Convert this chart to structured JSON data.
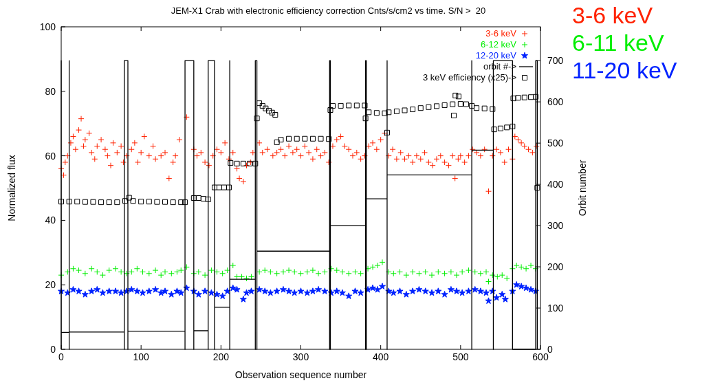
{
  "chart_data": {
    "type": "scatter",
    "title": "JEM-X1 Crab with electronic efficiency correction Cnts/s/cm2 vs time. S/N >  20",
    "xlabel": "Observation sequence number",
    "ylabel": "Normalized flux",
    "y2label": "Orbit number",
    "xlim": [
      0,
      600
    ],
    "xticks": [
      0,
      100,
      200,
      300,
      400,
      500,
      600
    ],
    "ylim": [
      0,
      100
    ],
    "yticks": [
      0,
      20,
      40,
      60,
      80,
      100
    ],
    "y2lim": [
      0,
      782
    ],
    "y2ticks": [
      0,
      100,
      200,
      300,
      400,
      500,
      600,
      700
    ],
    "legend": "top right",
    "annotations": [
      "3-6 keV",
      "6-11 keV",
      "11-20 keV"
    ],
    "series": [
      {
        "name": "3-6 keV",
        "marker": "cross",
        "color": "#ff2200",
        "x": [
          0,
          3,
          5,
          8,
          12,
          15,
          18,
          22,
          25,
          28,
          30,
          35,
          38,
          42,
          45,
          50,
          55,
          58,
          62,
          65,
          70,
          75,
          78,
          82,
          88,
          92,
          96,
          100,
          104,
          110,
          115,
          118,
          125,
          130,
          135,
          140,
          143,
          148,
          157,
          166,
          170,
          175,
          180,
          185,
          190,
          195,
          200,
          205,
          210,
          215,
          220,
          223,
          228,
          232,
          237,
          240,
          248,
          252,
          258,
          265,
          270,
          275,
          280,
          285,
          290,
          295,
          300,
          305,
          310,
          315,
          320,
          325,
          330,
          335,
          340,
          345,
          350,
          355,
          360,
          365,
          370,
          375,
          380,
          385,
          390,
          395,
          400,
          405,
          410,
          415,
          420,
          425,
          430,
          435,
          440,
          445,
          450,
          455,
          460,
          465,
          470,
          475,
          480,
          485,
          490,
          493,
          497,
          500,
          505,
          510,
          515,
          520,
          525,
          530,
          535,
          540,
          545,
          550,
          555,
          560,
          565,
          568,
          572,
          576,
          580,
          585,
          590,
          595
        ],
        "values": [
          56,
          54,
          58,
          60,
          64,
          66,
          62,
          68,
          71.5,
          63,
          65,
          67,
          61,
          59,
          63,
          65,
          62,
          60,
          57,
          64,
          61,
          63,
          58,
          60,
          62,
          64,
          58,
          61,
          66,
          60,
          63,
          59,
          60,
          61,
          53,
          58,
          60,
          65,
          72,
          62,
          60,
          61,
          58,
          57,
          60,
          62,
          61,
          64,
          59,
          61,
          56,
          53,
          52,
          57,
          58,
          61,
          64,
          61,
          62,
          60,
          61,
          62,
          60,
          63,
          61,
          62,
          60,
          63,
          61,
          59,
          62,
          60,
          61,
          58,
          63,
          65,
          66,
          63,
          62,
          60,
          61,
          59,
          60,
          63,
          64,
          62,
          65,
          67,
          60,
          62,
          59,
          61,
          59,
          60,
          58,
          60,
          59,
          61,
          58,
          57,
          59,
          60,
          58,
          57,
          60,
          53,
          59,
          60,
          58,
          60,
          62,
          61,
          60,
          62,
          49,
          60,
          62,
          61,
          58,
          62,
          59,
          66,
          65,
          64,
          63,
          62,
          61,
          63
        ]
      },
      {
        "name": "6-12 keV",
        "marker": "cross",
        "color": "#00ee00",
        "x": [
          0,
          8,
          15,
          22,
          30,
          38,
          45,
          52,
          60,
          68,
          75,
          82,
          88,
          95,
          102,
          110,
          118,
          125,
          130,
          138,
          145,
          150,
          157,
          166,
          172,
          180,
          188,
          195,
          202,
          208,
          215,
          220,
          226,
          232,
          238,
          248,
          255,
          262,
          270,
          278,
          285,
          292,
          300,
          308,
          315,
          322,
          330,
          338,
          345,
          352,
          360,
          368,
          375,
          384,
          390,
          396,
          402,
          410,
          416,
          424,
          432,
          440,
          448,
          456,
          464,
          472,
          480,
          488,
          495,
          502,
          510,
          518,
          525,
          532,
          535,
          540,
          546,
          552,
          558,
          565,
          570,
          576,
          582,
          588,
          594
        ],
        "values": [
          23,
          24,
          25,
          24.5,
          23.5,
          25,
          24,
          23,
          24.5,
          25,
          24,
          23.5,
          24,
          25,
          24,
          23.5,
          24.5,
          23,
          24,
          23.5,
          24,
          24.5,
          25.5,
          23.5,
          24,
          23,
          24.5,
          24,
          23.5,
          24.5,
          26,
          22.5,
          22.5,
          22,
          22.5,
          24,
          24.5,
          24,
          23.5,
          24,
          24.5,
          24,
          23.5,
          24,
          24.5,
          23.5,
          24,
          25,
          24.5,
          24,
          23.5,
          24,
          23.5,
          25,
          25.5,
          26,
          27,
          24,
          23.5,
          24,
          23,
          24,
          23.5,
          24,
          23,
          24,
          23.5,
          24,
          23,
          24,
          24.5,
          24,
          23.5,
          24,
          21,
          23,
          22.5,
          23,
          22,
          25,
          26,
          25.5,
          25,
          26,
          25
        ]
      },
      {
        "name": "12-20 keV",
        "marker": "star",
        "color": "#0022ff",
        "x": [
          0,
          8,
          15,
          22,
          30,
          38,
          45,
          52,
          60,
          68,
          75,
          82,
          88,
          95,
          102,
          110,
          118,
          125,
          130,
          138,
          145,
          150,
          157,
          166,
          172,
          180,
          188,
          195,
          202,
          208,
          215,
          220,
          228,
          232,
          238,
          248,
          255,
          262,
          270,
          278,
          285,
          292,
          300,
          308,
          315,
          322,
          330,
          338,
          345,
          352,
          360,
          368,
          375,
          384,
          390,
          396,
          402,
          410,
          416,
          424,
          432,
          440,
          448,
          456,
          464,
          472,
          480,
          488,
          495,
          502,
          510,
          518,
          525,
          532,
          535,
          540,
          545,
          552,
          556,
          565,
          570,
          576,
          582,
          588,
          594
        ],
        "values": [
          18,
          17.5,
          18.5,
          18,
          17,
          18,
          18.5,
          17.5,
          18,
          18,
          17.5,
          18,
          18.5,
          18,
          17.5,
          18,
          18.5,
          17.5,
          18,
          17,
          18,
          17.5,
          19,
          18,
          17,
          18,
          17.5,
          17,
          16.5,
          18,
          19,
          18.5,
          15.5,
          17.5,
          18,
          18.5,
          18,
          17.5,
          18,
          18.5,
          18,
          17.5,
          18,
          17.5,
          18,
          18.5,
          18,
          17.5,
          18,
          17.5,
          16.5,
          18,
          17.5,
          18.5,
          19,
          18.5,
          19.5,
          18,
          17.5,
          18,
          17,
          18,
          18.5,
          18,
          17.5,
          18,
          17,
          18.5,
          18,
          17.5,
          18,
          18.5,
          18,
          17.5,
          15,
          18,
          16,
          17,
          15.5,
          18,
          20,
          19.5,
          19,
          18.5,
          18
        ]
      },
      {
        "name": "orbit #->",
        "type": "line",
        "axis": "y2",
        "marker": "none",
        "color": "#000000",
        "x": [
          0,
          0,
          0,
          10,
          10,
          10,
          10,
          79,
          79,
          79,
          83.5,
          83.5,
          83.5,
          155,
          155,
          155,
          166,
          166,
          166,
          184,
          184,
          184,
          192,
          192,
          192,
          211,
          211,
          211,
          211,
          243,
          243,
          243,
          245,
          245,
          245,
          336,
          336,
          336,
          337,
          337,
          337,
          381,
          381,
          381,
          382,
          382,
          382,
          408,
          408,
          408,
          408,
          514,
          514,
          514,
          514,
          541,
          541,
          541,
          565,
          565,
          594,
          594,
          596,
          596
        ],
        "values": [
          0,
          700,
          41,
          41,
          0,
          700,
          42,
          42,
          0,
          700,
          700,
          0,
          44,
          44,
          0,
          700,
          700,
          0,
          45,
          45,
          0,
          700,
          700,
          0,
          102,
          102,
          0,
          700,
          170,
          170,
          0,
          700,
          700,
          0,
          238,
          238,
          0,
          700,
          700,
          0,
          300,
          300,
          0,
          700,
          700,
          0,
          365,
          365,
          0,
          700,
          423,
          423,
          0,
          700,
          483,
          483,
          0,
          700,
          700,
          0,
          0,
          700,
          700,
          0
        ]
      },
      {
        "name": "3 keV efficiency (x25)->",
        "marker": "square",
        "color": "#000000",
        "x": [
          0,
          10,
          20,
          30,
          40,
          50,
          60,
          70,
          80,
          85,
          90,
          100,
          110,
          120,
          130,
          140,
          150,
          155,
          166,
          172,
          178,
          184,
          192,
          198,
          204,
          210,
          212,
          220,
          228,
          236,
          243,
          245,
          248,
          252,
          256,
          260,
          264,
          268,
          270,
          275,
          285,
          295,
          305,
          315,
          325,
          335,
          337,
          340,
          350,
          360,
          370,
          380,
          381,
          385,
          395,
          405,
          408,
          410,
          420,
          430,
          440,
          450,
          460,
          470,
          480,
          490,
          491.5,
          493.5,
          497.5,
          500,
          507,
          514,
          520,
          530,
          540,
          542,
          550,
          558,
          565,
          566,
          572,
          580,
          588,
          594,
          596
        ],
        "values": [
          45.8,
          45.8,
          45.8,
          45.7,
          45.7,
          45.6,
          45.6,
          45.6,
          46,
          47,
          46,
          45.8,
          45.8,
          45.7,
          45.7,
          45.6,
          45.6,
          45.6,
          46.9,
          46.9,
          46.7,
          46.5,
          50.2,
          50.2,
          50.2,
          50.2,
          57.8,
          57.6,
          57.6,
          57.6,
          57.6,
          71.6,
          76.3,
          75.5,
          74.7,
          74,
          73.4,
          72.7,
          64.2,
          65,
          65.3,
          65.3,
          65.3,
          65.3,
          65.3,
          65.2,
          74.2,
          75.5,
          75.5,
          75.6,
          75.6,
          75.6,
          71.6,
          73.5,
          73.3,
          73.2,
          67.2,
          73.5,
          73.8,
          74.1,
          74.4,
          74.8,
          75.1,
          75.4,
          75.7,
          76,
          72.5,
          78.7,
          78.4,
          76.1,
          76,
          75.5,
          74.8,
          74.7,
          74.5,
          68.2,
          68.5,
          68.8,
          69.1,
          77.8,
          78,
          78.1,
          78.2,
          78.3,
          50.1
        ]
      }
    ]
  }
}
